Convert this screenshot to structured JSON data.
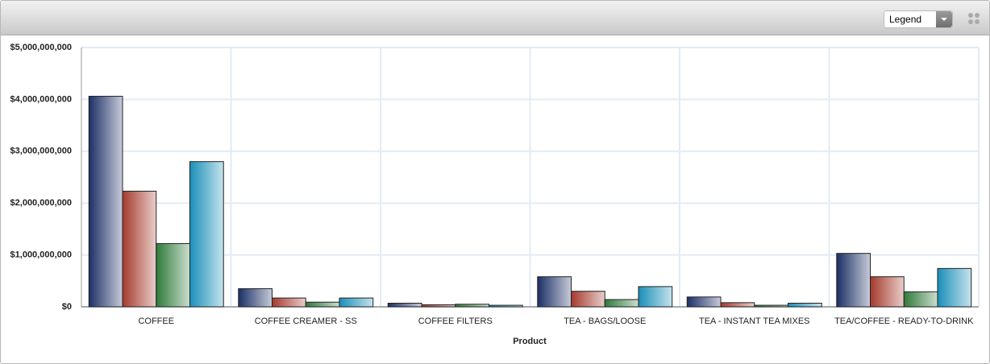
{
  "toolbar": {
    "dropdown": "Legend"
  },
  "chart_data": {
    "type": "bar",
    "x_label": "Product",
    "categories": [
      "COFFEE",
      "COFFEE CREAMER - SS",
      "COFFEE FILTERS",
      "TEA - BAGS/LOOSE",
      "TEA - INSTANT TEA MIXES",
      "TEA/COFFEE - READY-TO-DRINK"
    ],
    "series": [
      {
        "color": "#1c2f66",
        "values": [
          4060000000,
          350000000,
          70000000,
          580000000,
          190000000,
          1030000000
        ]
      },
      {
        "color": "#a53a2c",
        "values": [
          2230000000,
          170000000,
          40000000,
          300000000,
          80000000,
          580000000
        ]
      },
      {
        "color": "#2f7a3a",
        "values": [
          1220000000,
          90000000,
          50000000,
          140000000,
          30000000,
          290000000
        ]
      },
      {
        "color": "#1a8fb8",
        "values": [
          2800000000,
          170000000,
          30000000,
          390000000,
          70000000,
          740000000
        ]
      }
    ],
    "ylim": [
      0,
      5000000000
    ],
    "yticks": [
      {
        "value": 0,
        "label": "$0"
      },
      {
        "value": 1000000000,
        "label": "$1,000,000,000"
      },
      {
        "value": 2000000000,
        "label": "$2,000,000,000"
      },
      {
        "value": 3000000000,
        "label": "$3,000,000,000"
      },
      {
        "value": 4000000000,
        "label": "$4,000,000,000"
      },
      {
        "value": 5000000000,
        "label": "$5,000,000,000"
      }
    ],
    "grid": true
  }
}
